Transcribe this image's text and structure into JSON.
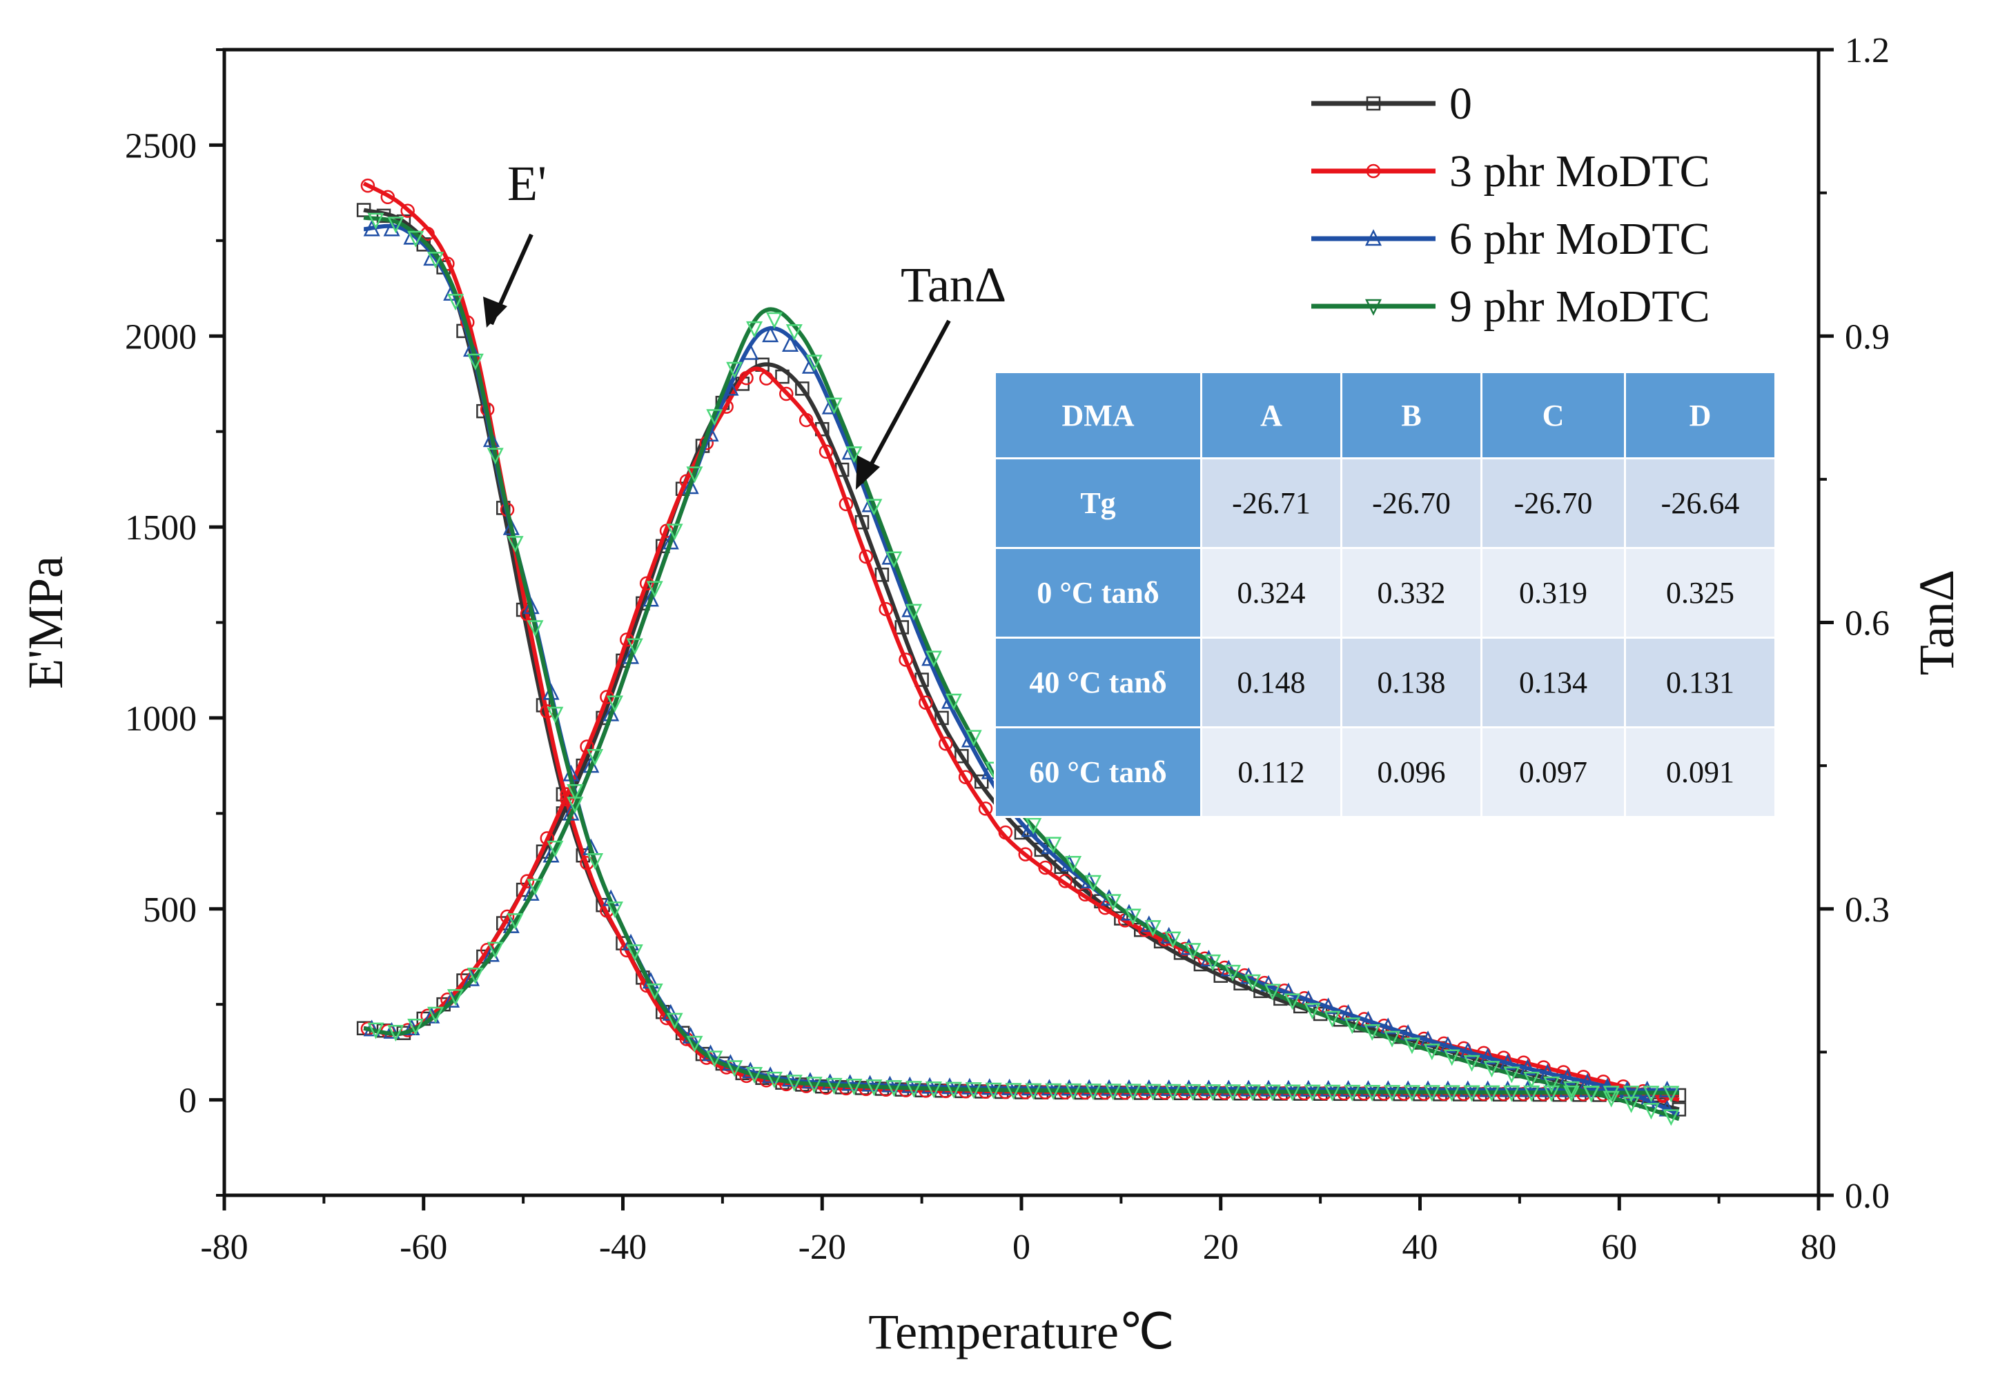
{
  "colors": {
    "series_0": "#333333",
    "series_3": "#e8141b",
    "series_6": "#1f4fa5",
    "series_9": "#1a7a3a",
    "table_header": "#5b9bd5"
  },
  "annotations": {
    "storage_modulus": "E'",
    "tan_delta": "TanΔ"
  },
  "table": {
    "corner": "DMA",
    "columns": [
      "A",
      "B",
      "C",
      "D"
    ],
    "rows": [
      {
        "label": "Tg",
        "values": [
          "-26.71",
          "-26.70",
          "-26.70",
          "-26.64"
        ]
      },
      {
        "label": "0 °C tanδ",
        "values": [
          "0.324",
          "0.332",
          "0.319",
          "0.325"
        ]
      },
      {
        "label": "40 °C tanδ",
        "values": [
          "0.148",
          "0.138",
          "0.134",
          "0.131"
        ]
      },
      {
        "label": "60 °C tanδ",
        "values": [
          "0.112",
          "0.096",
          "0.097",
          "0.091"
        ]
      }
    ]
  },
  "chart_data": {
    "type": "line",
    "title": "",
    "xlabel": "Temperature℃",
    "ylabel": "E'MPa",
    "y2label": "TanΔ",
    "xlim": [
      -80,
      80
    ],
    "ylim": [
      -250,
      2750
    ],
    "y2lim": [
      0,
      1.2
    ],
    "xticks": [
      "-80",
      "-60",
      "-40",
      "-20",
      "0",
      "20",
      "40",
      "60",
      "80"
    ],
    "yticks": [
      "0",
      "500",
      "1000",
      "1500",
      "2000",
      "2500"
    ],
    "y2ticks": [
      "0.0",
      "0.3",
      "0.6",
      "0.9",
      "1.2"
    ],
    "legend_position": "top-right",
    "series": [
      {
        "name": "0",
        "marker": "square",
        "E_MPa": [
          [
            -66,
            2330
          ],
          [
            -62,
            2300
          ],
          [
            -58,
            2180
          ],
          [
            -55,
            1930
          ],
          [
            -52,
            1550
          ],
          [
            -49,
            1150
          ],
          [
            -46,
            800
          ],
          [
            -43,
            560
          ],
          [
            -40,
            410
          ],
          [
            -36,
            230
          ],
          [
            -32,
            120
          ],
          [
            -28,
            70
          ],
          [
            -24,
            45
          ],
          [
            -20,
            35
          ],
          [
            -10,
            25
          ],
          [
            0,
            20
          ],
          [
            20,
            17
          ],
          [
            40,
            15
          ],
          [
            66,
            12
          ]
        ],
        "tan_delta": [
          [
            -66,
            0.175
          ],
          [
            -62,
            0.17
          ],
          [
            -58,
            0.2
          ],
          [
            -54,
            0.25
          ],
          [
            -50,
            0.32
          ],
          [
            -46,
            0.4
          ],
          [
            -42,
            0.5
          ],
          [
            -38,
            0.62
          ],
          [
            -34,
            0.74
          ],
          [
            -30,
            0.83
          ],
          [
            -26,
            0.87
          ],
          [
            -22,
            0.845
          ],
          [
            -18,
            0.76
          ],
          [
            -14,
            0.65
          ],
          [
            -10,
            0.54
          ],
          [
            -6,
            0.46
          ],
          [
            0,
            0.38
          ],
          [
            10,
            0.29
          ],
          [
            20,
            0.23
          ],
          [
            30,
            0.19
          ],
          [
            40,
            0.16
          ],
          [
            50,
            0.13
          ],
          [
            60,
            0.105
          ],
          [
            66,
            0.09
          ]
        ]
      },
      {
        "name": "3 phr MoDTC",
        "marker": "circle",
        "E_MPa": [
          [
            -66,
            2400
          ],
          [
            -62,
            2340
          ],
          [
            -58,
            2220
          ],
          [
            -55,
            1990
          ],
          [
            -52,
            1600
          ],
          [
            -49,
            1190
          ],
          [
            -46,
            820
          ],
          [
            -43,
            570
          ],
          [
            -40,
            410
          ],
          [
            -36,
            225
          ],
          [
            -32,
            115
          ],
          [
            -28,
            65
          ],
          [
            -24,
            42
          ],
          [
            -20,
            32
          ],
          [
            -10,
            24
          ],
          [
            0,
            20
          ],
          [
            20,
            18
          ],
          [
            40,
            16
          ],
          [
            66,
            14
          ]
        ],
        "tan_delta": [
          [
            -66,
            0.175
          ],
          [
            -62,
            0.17
          ],
          [
            -58,
            0.2
          ],
          [
            -54,
            0.25
          ],
          [
            -50,
            0.32
          ],
          [
            -46,
            0.41
          ],
          [
            -42,
            0.51
          ],
          [
            -38,
            0.63
          ],
          [
            -34,
            0.74
          ],
          [
            -30,
            0.82
          ],
          [
            -27,
            0.865
          ],
          [
            -24,
            0.845
          ],
          [
            -20,
            0.79
          ],
          [
            -16,
            0.68
          ],
          [
            -12,
            0.57
          ],
          [
            -8,
            0.48
          ],
          [
            -4,
            0.41
          ],
          [
            0,
            0.36
          ],
          [
            10,
            0.29
          ],
          [
            20,
            0.24
          ],
          [
            30,
            0.2
          ],
          [
            40,
            0.165
          ],
          [
            50,
            0.14
          ],
          [
            60,
            0.115
          ],
          [
            66,
            0.1
          ]
        ]
      },
      {
        "name": "6 phr MoDTC",
        "marker": "triangle-up",
        "E_MPa": [
          [
            -66,
            2280
          ],
          [
            -62,
            2280
          ],
          [
            -58,
            2170
          ],
          [
            -55,
            1950
          ],
          [
            -52,
            1580
          ],
          [
            -49,
            1270
          ],
          [
            -46,
            930
          ],
          [
            -43,
            640
          ],
          [
            -40,
            450
          ],
          [
            -36,
            250
          ],
          [
            -32,
            130
          ],
          [
            -28,
            80
          ],
          [
            -24,
            55
          ],
          [
            -20,
            45
          ],
          [
            -10,
            35
          ],
          [
            0,
            30
          ],
          [
            20,
            28
          ],
          [
            40,
            26
          ],
          [
            66,
            25
          ]
        ],
        "tan_delta": [
          [
            -66,
            0.175
          ],
          [
            -62,
            0.17
          ],
          [
            -58,
            0.195
          ],
          [
            -54,
            0.24
          ],
          [
            -50,
            0.3
          ],
          [
            -46,
            0.38
          ],
          [
            -42,
            0.48
          ],
          [
            -38,
            0.6
          ],
          [
            -34,
            0.72
          ],
          [
            -30,
            0.83
          ],
          [
            -26,
            0.905
          ],
          [
            -22,
            0.885
          ],
          [
            -18,
            0.8
          ],
          [
            -14,
            0.69
          ],
          [
            -10,
            0.58
          ],
          [
            -6,
            0.49
          ],
          [
            0,
            0.39
          ],
          [
            10,
            0.3
          ],
          [
            20,
            0.24
          ],
          [
            30,
            0.2
          ],
          [
            40,
            0.165
          ],
          [
            50,
            0.135
          ],
          [
            60,
            0.11
          ],
          [
            66,
            0.085
          ]
        ]
      },
      {
        "name": "9 phr MoDTC",
        "marker": "triangle-down",
        "E_MPa": [
          [
            -66,
            2310
          ],
          [
            -62,
            2290
          ],
          [
            -58,
            2180
          ],
          [
            -55,
            1960
          ],
          [
            -52,
            1590
          ],
          [
            -49,
            1260
          ],
          [
            -46,
            920
          ],
          [
            -43,
            640
          ],
          [
            -40,
            450
          ],
          [
            -36,
            245
          ],
          [
            -32,
            125
          ],
          [
            -28,
            75
          ],
          [
            -24,
            50
          ],
          [
            -20,
            40
          ],
          [
            -10,
            30
          ],
          [
            0,
            25
          ],
          [
            20,
            22
          ],
          [
            40,
            20
          ],
          [
            66,
            18
          ]
        ],
        "tan_delta": [
          [
            -66,
            0.175
          ],
          [
            -62,
            0.17
          ],
          [
            -58,
            0.195
          ],
          [
            -54,
            0.24
          ],
          [
            -50,
            0.3
          ],
          [
            -46,
            0.38
          ],
          [
            -42,
            0.48
          ],
          [
            -38,
            0.6
          ],
          [
            -34,
            0.72
          ],
          [
            -30,
            0.84
          ],
          [
            -26,
            0.925
          ],
          [
            -22,
            0.9
          ],
          [
            -18,
            0.81
          ],
          [
            -14,
            0.7
          ],
          [
            -10,
            0.59
          ],
          [
            -6,
            0.5
          ],
          [
            0,
            0.4
          ],
          [
            10,
            0.3
          ],
          [
            20,
            0.24
          ],
          [
            30,
            0.19
          ],
          [
            40,
            0.155
          ],
          [
            50,
            0.125
          ],
          [
            60,
            0.1
          ],
          [
            66,
            0.08
          ]
        ]
      }
    ]
  }
}
